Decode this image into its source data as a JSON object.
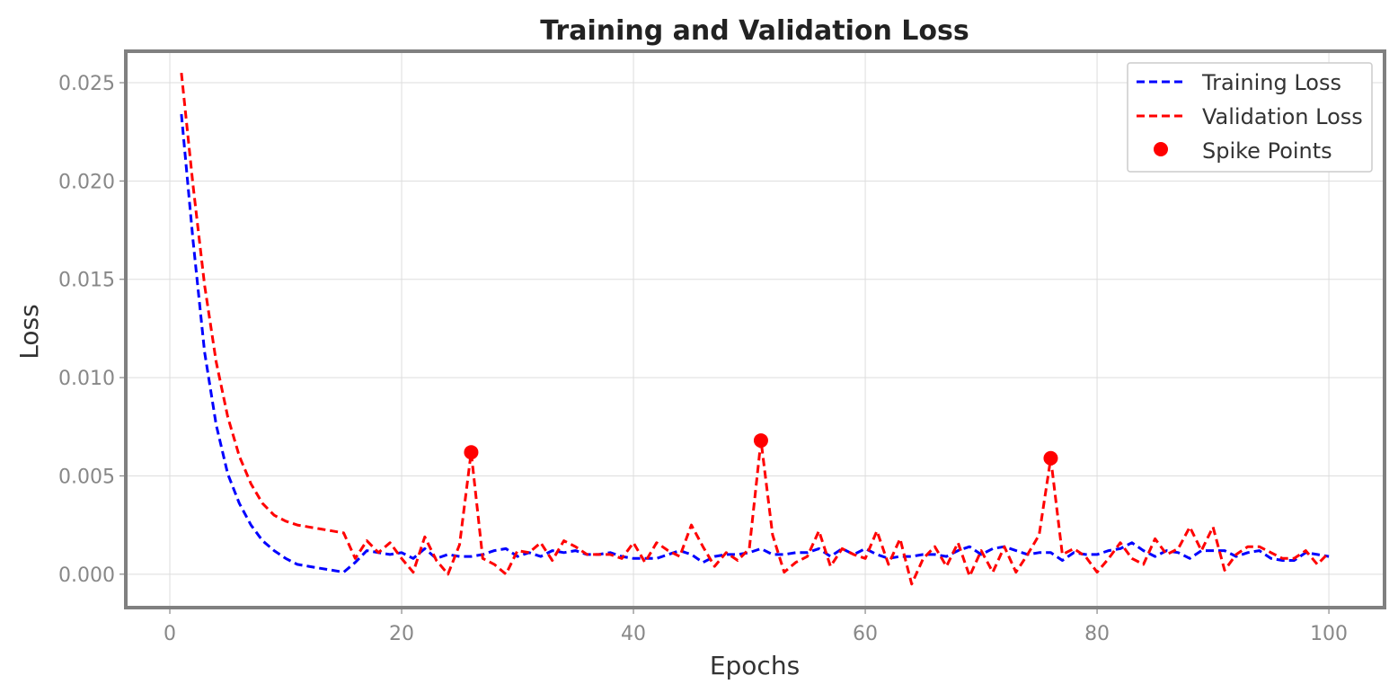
{
  "chart_data": {
    "type": "line",
    "title": "Training and Validation Loss",
    "xlabel": "Epochs",
    "ylabel": "Loss",
    "xlim": [
      -3.8,
      104.8
    ],
    "ylim": [
      -0.0017,
      0.0266
    ],
    "xticks": [
      0,
      20,
      40,
      60,
      80,
      100
    ],
    "xtick_labels": [
      "0",
      "20",
      "40",
      "60",
      "80",
      "100"
    ],
    "yticks": [
      0.0,
      0.005,
      0.01,
      0.015,
      0.02,
      0.025
    ],
    "ytick_labels": [
      "0.000",
      "0.005",
      "0.010",
      "0.015",
      "0.020",
      "0.025"
    ],
    "grid": true,
    "legend_position": "top-right",
    "series": [
      {
        "name": "Training Loss",
        "color": "#0000ff",
        "style": "dashed",
        "x": [
          1,
          2,
          3,
          4,
          5,
          6,
          7,
          8,
          9,
          10,
          11,
          12,
          13,
          14,
          15,
          16,
          17,
          18,
          19,
          20,
          21,
          22,
          23,
          24,
          25,
          26,
          27,
          28,
          29,
          30,
          31,
          32,
          33,
          34,
          35,
          36,
          37,
          38,
          39,
          40,
          41,
          42,
          43,
          44,
          45,
          46,
          47,
          48,
          49,
          50,
          51,
          52,
          53,
          54,
          55,
          56,
          57,
          58,
          59,
          60,
          61,
          62,
          63,
          64,
          65,
          66,
          67,
          68,
          69,
          70,
          71,
          72,
          73,
          74,
          75,
          76,
          77,
          78,
          79,
          80,
          81,
          82,
          83,
          84,
          85,
          86,
          87,
          88,
          89,
          90,
          91,
          92,
          93,
          94,
          95,
          96,
          97,
          98,
          99,
          100
        ],
        "y": [
          0.0234,
          0.017,
          0.0113,
          0.0076,
          0.0051,
          0.0036,
          0.0025,
          0.0017,
          0.0012,
          0.0008,
          0.0005,
          0.0004,
          0.0003,
          0.0002,
          0.0001,
          0.0006,
          0.0012,
          0.0011,
          0.001,
          0.0011,
          0.0008,
          0.0013,
          0.0008,
          0.001,
          0.0009,
          0.0009,
          0.001,
          0.0012,
          0.0013,
          0.0009,
          0.0011,
          0.0009,
          0.0012,
          0.0011,
          0.0012,
          0.001,
          0.001,
          0.0011,
          0.0009,
          0.0008,
          0.0008,
          0.0008,
          0.001,
          0.0012,
          0.001,
          0.0006,
          0.0009,
          0.001,
          0.001,
          0.0011,
          0.0013,
          0.001,
          0.001,
          0.0011,
          0.0011,
          0.0013,
          0.0009,
          0.0013,
          0.001,
          0.0013,
          0.001,
          0.0008,
          0.0009,
          0.0009,
          0.001,
          0.001,
          0.0009,
          0.0012,
          0.0014,
          0.001,
          0.0013,
          0.0014,
          0.0012,
          0.001,
          0.0011,
          0.0011,
          0.0007,
          0.0011,
          0.001,
          0.001,
          0.0012,
          0.0013,
          0.0016,
          0.0012,
          0.0009,
          0.0012,
          0.0011,
          0.0008,
          0.0012,
          0.0012,
          0.0012,
          0.0009,
          0.0011,
          0.0012,
          0.0008,
          0.0007,
          0.0007,
          0.0011,
          0.001,
          0.0009
        ]
      },
      {
        "name": "Validation Loss",
        "color": "#ff0000",
        "style": "dashed",
        "x": [
          1,
          2,
          3,
          4,
          5,
          6,
          7,
          8,
          9,
          10,
          11,
          12,
          13,
          14,
          15,
          16,
          17,
          18,
          19,
          20,
          21,
          22,
          23,
          24,
          25,
          26,
          27,
          28,
          29,
          30,
          31,
          32,
          33,
          34,
          35,
          36,
          37,
          38,
          39,
          40,
          41,
          42,
          43,
          44,
          45,
          46,
          47,
          48,
          49,
          50,
          51,
          52,
          53,
          54,
          55,
          56,
          57,
          58,
          59,
          60,
          61,
          62,
          63,
          64,
          65,
          66,
          67,
          68,
          69,
          70,
          71,
          72,
          73,
          74,
          75,
          76,
          77,
          78,
          79,
          80,
          81,
          82,
          83,
          84,
          85,
          86,
          87,
          88,
          89,
          90,
          91,
          92,
          93,
          94,
          95,
          96,
          97,
          98,
          99,
          100
        ],
        "y": [
          0.0255,
          0.0198,
          0.0147,
          0.0108,
          0.008,
          0.006,
          0.0046,
          0.0036,
          0.003,
          0.0027,
          0.0025,
          0.0024,
          0.0023,
          0.0022,
          0.0021,
          0.0008,
          0.0017,
          0.0011,
          0.0016,
          0.0008,
          0.0001,
          0.0019,
          0.0007,
          0.0,
          0.0015,
          0.0062,
          0.0008,
          0.0005,
          0.0,
          0.0012,
          0.0011,
          0.0016,
          0.0007,
          0.0017,
          0.0014,
          0.001,
          0.001,
          0.001,
          0.0008,
          0.0016,
          0.0006,
          0.0016,
          0.0012,
          0.0009,
          0.0025,
          0.0014,
          0.0004,
          0.0011,
          0.0007,
          0.0013,
          0.0068,
          0.002,
          0.0001,
          0.0006,
          0.0009,
          0.0022,
          0.0004,
          0.0013,
          0.001,
          0.0008,
          0.0022,
          0.0005,
          0.0018,
          -0.0005,
          0.0008,
          0.0014,
          0.0004,
          0.0016,
          -0.0001,
          0.0012,
          0.0001,
          0.0014,
          0.0001,
          0.001,
          0.002,
          0.0059,
          0.001,
          0.0013,
          0.0009,
          0.0001,
          0.0008,
          0.0016,
          0.0008,
          0.0005,
          0.0018,
          0.001,
          0.0013,
          0.0024,
          0.0012,
          0.0024,
          0.0002,
          0.001,
          0.0014,
          0.0014,
          0.0011,
          0.0008,
          0.0008,
          0.0012,
          0.0005,
          0.0011
        ]
      },
      {
        "name": "Spike Points",
        "color": "#ff0000",
        "style": "markers",
        "x": [
          26,
          51,
          76
        ],
        "y": [
          0.0062,
          0.0068,
          0.0059
        ]
      }
    ]
  }
}
